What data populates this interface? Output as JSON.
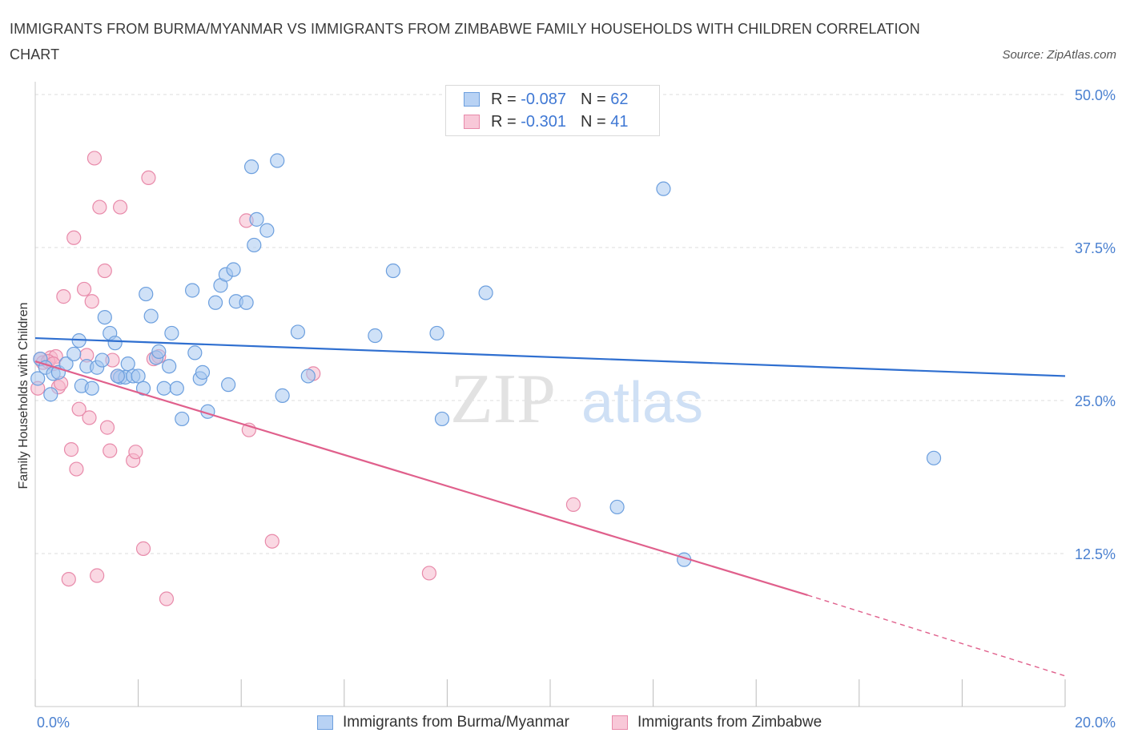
{
  "title": "IMMIGRANTS FROM BURMA/MYANMAR VS IMMIGRANTS FROM ZIMBABWE FAMILY HOUSEHOLDS WITH CHILDREN CORRELATION CHART",
  "source": "Source: ZipAtlas.com",
  "watermark": {
    "zip": "ZIP",
    "atlas": "atlas"
  },
  "legend_stats": [
    {
      "r_label": "R =",
      "r_value": "-0.087",
      "n_label": "N =",
      "n_value": "62"
    },
    {
      "r_label": "R =",
      "r_value": "-0.301",
      "n_label": "N =",
      "n_value": "41"
    }
  ],
  "colors": {
    "blue_fill": "#a8c8f0",
    "blue_stroke": "#6c9fde",
    "blue_line": "#2f6fd0",
    "pink_fill": "#f5b8cc",
    "pink_stroke": "#e88aaa",
    "pink_line": "#e0608c",
    "grid": "#dddddd",
    "axis_text": "#4a80d0"
  },
  "chart_data": {
    "type": "scatter",
    "title": "IMMIGRANTS FROM BURMA/MYANMAR VS IMMIGRANTS FROM ZIMBABWE FAMILY HOUSEHOLDS WITH CHILDREN CORRELATION CHART",
    "xlabel": "",
    "ylabel": "Family Households with Children",
    "xlim": [
      0,
      20
    ],
    "ylim": [
      0,
      50
    ],
    "x_tick_labels": [
      "0.0%",
      "20.0%"
    ],
    "y_ticks": [
      12.5,
      25.0,
      37.5,
      50.0
    ],
    "y_tick_labels": [
      "12.5%",
      "25.0%",
      "37.5%",
      "50.0%"
    ],
    "grid": true,
    "legend_position": "top-center",
    "series": [
      {
        "name": "Immigrants from Burma/Myanmar",
        "color": "#6c9fde",
        "r": -0.087,
        "n": 62,
        "trend": {
          "x0": 0,
          "y0": 30.1,
          "x1": 20,
          "y1": 27.0
        },
        "points": [
          [
            0.1,
            28.4
          ],
          [
            0.2,
            27.7
          ],
          [
            0.3,
            25.5
          ],
          [
            0.35,
            27.2
          ],
          [
            0.45,
            27.3
          ],
          [
            0.6,
            28.0
          ],
          [
            0.75,
            28.8
          ],
          [
            0.85,
            29.9
          ],
          [
            0.9,
            26.2
          ],
          [
            1.0,
            27.8
          ],
          [
            1.1,
            26.0
          ],
          [
            1.2,
            27.7
          ],
          [
            1.3,
            28.3
          ],
          [
            1.35,
            31.8
          ],
          [
            1.45,
            30.5
          ],
          [
            1.55,
            29.7
          ],
          [
            1.65,
            26.9
          ],
          [
            1.75,
            26.9
          ],
          [
            1.8,
            28.0
          ],
          [
            1.9,
            27.0
          ],
          [
            2.0,
            27.0
          ],
          [
            2.1,
            26.0
          ],
          [
            2.15,
            33.7
          ],
          [
            2.25,
            31.9
          ],
          [
            2.35,
            28.5
          ],
          [
            2.4,
            29.0
          ],
          [
            2.5,
            26.0
          ],
          [
            2.6,
            27.8
          ],
          [
            2.65,
            30.5
          ],
          [
            2.75,
            26.0
          ],
          [
            2.85,
            23.5
          ],
          [
            3.05,
            34.0
          ],
          [
            3.1,
            28.9
          ],
          [
            3.2,
            26.8
          ],
          [
            3.25,
            27.3
          ],
          [
            3.35,
            24.1
          ],
          [
            3.5,
            33.0
          ],
          [
            3.6,
            34.4
          ],
          [
            3.7,
            35.3
          ],
          [
            3.75,
            26.3
          ],
          [
            3.85,
            35.7
          ],
          [
            3.9,
            33.1
          ],
          [
            4.1,
            33.0
          ],
          [
            4.2,
            44.1
          ],
          [
            4.25,
            37.7
          ],
          [
            4.3,
            39.8
          ],
          [
            4.5,
            38.9
          ],
          [
            4.7,
            44.6
          ],
          [
            4.8,
            25.4
          ],
          [
            5.1,
            30.6
          ],
          [
            5.3,
            27.0
          ],
          [
            6.6,
            30.3
          ],
          [
            6.95,
            35.6
          ],
          [
            7.8,
            30.5
          ],
          [
            7.9,
            23.5
          ],
          [
            8.75,
            33.8
          ],
          [
            11.3,
            16.3
          ],
          [
            12.2,
            42.3
          ],
          [
            12.6,
            12.0
          ],
          [
            17.45,
            20.3
          ],
          [
            0.05,
            26.8
          ],
          [
            1.6,
            27.0
          ]
        ]
      },
      {
        "name": "Immigrants from Zimbabwe",
        "color": "#e88aaa",
        "r": -0.301,
        "n": 41,
        "trend": {
          "x0": 0,
          "y0": 28.2,
          "x1": 15.0,
          "y1": 9.1,
          "dash_x1": 20,
          "dash_y1": 2.5
        },
        "points": [
          [
            0.05,
            26.0
          ],
          [
            0.1,
            28.4
          ],
          [
            0.15,
            28.1
          ],
          [
            0.3,
            28.5
          ],
          [
            0.4,
            28.6
          ],
          [
            0.45,
            26.1
          ],
          [
            0.55,
            33.5
          ],
          [
            0.65,
            10.4
          ],
          [
            0.7,
            21.0
          ],
          [
            0.75,
            38.3
          ],
          [
            0.8,
            19.4
          ],
          [
            0.85,
            24.3
          ],
          [
            0.95,
            34.1
          ],
          [
            1.0,
            28.7
          ],
          [
            1.05,
            23.6
          ],
          [
            1.1,
            33.1
          ],
          [
            1.15,
            44.8
          ],
          [
            1.2,
            10.7
          ],
          [
            1.25,
            40.8
          ],
          [
            1.35,
            35.6
          ],
          [
            1.4,
            22.8
          ],
          [
            1.45,
            20.9
          ],
          [
            1.6,
            27.0
          ],
          [
            1.65,
            40.8
          ],
          [
            1.9,
            20.1
          ],
          [
            1.95,
            20.8
          ],
          [
            2.1,
            12.9
          ],
          [
            2.2,
            43.2
          ],
          [
            2.3,
            28.4
          ],
          [
            2.55,
            8.8
          ],
          [
            4.1,
            39.7
          ],
          [
            4.15,
            22.6
          ],
          [
            4.6,
            13.5
          ],
          [
            5.4,
            27.2
          ],
          [
            7.65,
            10.9
          ],
          [
            10.45,
            16.5
          ],
          [
            0.25,
            28.2
          ],
          [
            0.5,
            26.4
          ],
          [
            0.35,
            28.0
          ],
          [
            1.5,
            28.3
          ],
          [
            2.4,
            28.6
          ]
        ]
      }
    ]
  },
  "bottom_legend": [
    {
      "label": "Immigrants from Burma/Myanmar"
    },
    {
      "label": "Immigrants from Zimbabwe"
    }
  ]
}
